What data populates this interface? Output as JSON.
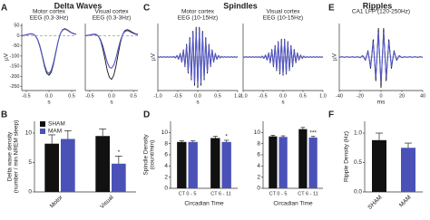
{
  "figure": {
    "panels": [
      {
        "label": "A",
        "title": "Delta Waves"
      },
      {
        "label": "B"
      },
      {
        "label": "C",
        "title": "Spindles"
      },
      {
        "label": "D"
      },
      {
        "label": "E",
        "title": "Ripples"
      },
      {
        "label": "F"
      }
    ]
  },
  "chart_data": [
    {
      "type": "line",
      "subtitle": [
        "Motor cortex",
        "EEG (0.3-3Hz)"
      ],
      "ylabel": "µV",
      "xlabel": "s",
      "x": [
        -0.6,
        -0.55,
        -0.5,
        -0.45,
        -0.4,
        -0.35,
        -0.3,
        -0.25,
        -0.2,
        -0.15,
        -0.1,
        -0.05,
        0,
        0.05,
        0.1,
        0.15,
        0.2,
        0.25,
        0.3,
        0.35,
        0.4,
        0.45,
        0.5,
        0.55,
        0.6
      ],
      "series": [
        {
          "color": "#111111",
          "values": [
            0,
            2,
            5,
            8,
            10,
            8,
            0,
            -20,
            -55,
            -100,
            -150,
            -185,
            -195,
            -180,
            -140,
            -85,
            -30,
            10,
            30,
            35,
            30,
            22,
            15,
            10,
            8
          ]
        },
        {
          "color": "#5558c8",
          "values": [
            0,
            2,
            4,
            7,
            9,
            7,
            0,
            -18,
            -50,
            -95,
            -142,
            -176,
            -186,
            -170,
            -132,
            -80,
            -28,
            10,
            28,
            32,
            28,
            20,
            14,
            9,
            7
          ]
        }
      ],
      "xlim": [
        -0.6,
        0.6
      ],
      "xticks": [
        -0.5,
        {
          "value": 0,
          "label": "0.0"
        },
        0.5
      ],
      "ylim": [
        -270,
        60
      ],
      "yticks": [
        50,
        0,
        -50,
        -100,
        -150,
        -200,
        -250
      ],
      "zero_line": "dashed"
    },
    {
      "type": "line",
      "subtitle": [
        "Visual cortex",
        "EEG (0.3-3Hz)"
      ],
      "xlabel": "s",
      "x": [
        -0.6,
        -0.55,
        -0.5,
        -0.45,
        -0.4,
        -0.35,
        -0.3,
        -0.25,
        -0.2,
        -0.15,
        -0.1,
        -0.05,
        0,
        0.05,
        0.1,
        0.15,
        0.2,
        0.25,
        0.3,
        0.35,
        0.4,
        0.45,
        0.5,
        0.55,
        0.6
      ],
      "series": [
        {
          "color": "#111111",
          "values": [
            0,
            2,
            4,
            6,
            8,
            6,
            -2,
            -25,
            -65,
            -115,
            -170,
            -205,
            -215,
            -195,
            -150,
            -90,
            -35,
            5,
            25,
            30,
            27,
            20,
            14,
            9,
            7
          ]
        },
        {
          "color": "#5558c8",
          "values": [
            0,
            1,
            3,
            5,
            6,
            4,
            -2,
            -20,
            -50,
            -90,
            -130,
            -155,
            -160,
            -145,
            -110,
            -65,
            -25,
            5,
            20,
            25,
            22,
            16,
            11,
            7,
            5
          ]
        }
      ],
      "xlim": [
        -0.6,
        0.6
      ],
      "xticks": [
        -0.5,
        {
          "value": 0,
          "label": "0.0"
        },
        0.5
      ],
      "ylim": [
        -270,
        60
      ],
      "zero_line": "dashed"
    },
    {
      "type": "line",
      "subtitle": [
        "Motor cortex",
        "EEG (10-15Hz)"
      ],
      "ylabel": "µV",
      "xlabel": "s",
      "x": [
        -1,
        -0.96,
        -0.92,
        -0.88,
        -0.84,
        -0.8,
        -0.76,
        -0.72,
        -0.68,
        -0.64,
        -0.6,
        -0.56,
        -0.52,
        -0.48,
        -0.44,
        -0.4,
        -0.36,
        -0.32,
        -0.28,
        -0.24,
        -0.2,
        -0.16,
        -0.12,
        -0.08,
        -0.04,
        0,
        0.04,
        0.08,
        0.12,
        0.16,
        0.2,
        0.24,
        0.28,
        0.32,
        0.36,
        0.4,
        0.44,
        0.48,
        0.52,
        0.56,
        0.6,
        0.64,
        0.68,
        0.72,
        0.76,
        0.8,
        0.84,
        0.88,
        0.92,
        0.96,
        1
      ],
      "series": [
        {
          "color": "#111111",
          "values": [
            1,
            -1,
            1,
            -1,
            1,
            -1,
            1,
            -1,
            1,
            -1,
            2,
            -3,
            5,
            -8,
            12,
            -17,
            24,
            -32,
            42,
            -53,
            64,
            -75,
            85,
            -93,
            98,
            -100,
            98,
            -93,
            85,
            -75,
            64,
            -53,
            42,
            -32,
            24,
            -17,
            12,
            -8,
            5,
            -3,
            2,
            -1,
            1,
            -1,
            1,
            -1,
            1,
            -1,
            1,
            -1,
            1
          ]
        },
        {
          "color": "#5558c8",
          "values": [
            1,
            -1,
            1,
            -1,
            1,
            -1,
            1,
            -1,
            1,
            -1,
            2,
            -3,
            5,
            -7,
            11,
            -15,
            22,
            -29,
            38,
            -48,
            58,
            -68,
            77,
            -84,
            88,
            -90,
            88,
            -84,
            77,
            -68,
            58,
            -48,
            38,
            -29,
            22,
            -15,
            11,
            -7,
            5,
            -3,
            2,
            -1,
            1,
            -1,
            1,
            -1,
            1,
            -1,
            1,
            -1,
            1
          ]
        }
      ],
      "xlim": [
        -1,
        1
      ],
      "xticks": [
        {
          "value": -1,
          "label": "-1.0"
        },
        -0.5,
        {
          "value": 0,
          "label": "0.0"
        },
        0.5,
        {
          "value": 1,
          "label": "1.0"
        }
      ],
      "ylim": [
        -110,
        110
      ],
      "zero_line": "solid"
    },
    {
      "type": "line",
      "subtitle": [
        "Visual cortex",
        "EEG (10-15Hz)"
      ],
      "xlabel": "s",
      "x": [
        -1,
        -0.96,
        -0.92,
        -0.88,
        -0.84,
        -0.8,
        -0.76,
        -0.72,
        -0.68,
        -0.64,
        -0.6,
        -0.56,
        -0.52,
        -0.48,
        -0.44,
        -0.4,
        -0.36,
        -0.32,
        -0.28,
        -0.24,
        -0.2,
        -0.16,
        -0.12,
        -0.08,
        -0.04,
        0,
        0.04,
        0.08,
        0.12,
        0.16,
        0.2,
        0.24,
        0.28,
        0.32,
        0.36,
        0.4,
        0.44,
        0.48,
        0.52,
        0.56,
        0.6,
        0.64,
        0.68,
        0.72,
        0.76,
        0.8,
        0.84,
        0.88,
        0.92,
        0.96,
        1
      ],
      "series": [
        {
          "color": "#111111",
          "values": [
            1,
            -1,
            1,
            -1,
            1,
            -1,
            1,
            -1,
            1,
            -1,
            1,
            -2,
            3,
            -5,
            7,
            -10,
            14,
            -19,
            25,
            -32,
            38,
            -45,
            51,
            -56,
            59,
            -60,
            59,
            -56,
            51,
            -45,
            38,
            -32,
            25,
            -19,
            14,
            -10,
            7,
            -5,
            3,
            -2,
            1,
            -1,
            1,
            -1,
            1,
            -1,
            1,
            -1,
            1,
            -1,
            1
          ]
        },
        {
          "color": "#5558c8",
          "values": [
            1,
            -1,
            1,
            -1,
            1,
            -1,
            1,
            -1,
            1,
            -1,
            1,
            -2,
            3,
            -4,
            6,
            -9,
            13,
            -17,
            23,
            -29,
            35,
            -41,
            47,
            -51,
            54,
            -55,
            54,
            -51,
            47,
            -41,
            35,
            -29,
            23,
            -17,
            13,
            -9,
            6,
            -4,
            3,
            -2,
            1,
            -1,
            1,
            -1,
            1,
            -1,
            1,
            -1,
            1,
            -1,
            1
          ]
        }
      ],
      "xlim": [
        -1,
        1
      ],
      "xticks": [
        {
          "value": -1,
          "label": "-1.0"
        },
        -0.5,
        {
          "value": 0,
          "label": "0.0"
        },
        0.5,
        {
          "value": 1,
          "label": "1.0"
        }
      ],
      "ylim": [
        -110,
        110
      ],
      "zero_line": "solid"
    },
    {
      "type": "line",
      "subtitle": [
        "CA1 LFP (120-250Hz)"
      ],
      "ylabel": "µV",
      "xlabel": "ms",
      "x": [
        -40,
        -37.5,
        -35,
        -32.5,
        -30,
        -27.5,
        -25,
        -22.5,
        -20,
        -17.5,
        -15,
        -12.5,
        -10,
        -7.5,
        -5,
        -2.5,
        0,
        2.5,
        5,
        7.5,
        10,
        12.5,
        15,
        17.5,
        20,
        22.5,
        25,
        27.5,
        30,
        32.5,
        35,
        37.5,
        40
      ],
      "series": [
        {
          "color": "#111111",
          "values": [
            -1,
            1,
            -1,
            1,
            -1,
            1,
            -1,
            1,
            -2,
            5,
            -11,
            21,
            -37,
            57,
            -78,
            94,
            -100,
            94,
            -78,
            57,
            -37,
            21,
            -11,
            5,
            -2,
            1,
            -1,
            1,
            -1,
            1,
            -1,
            1,
            -1
          ]
        },
        {
          "color": "#5558c8",
          "values": [
            -1,
            1,
            -1,
            1,
            -1,
            1,
            -1,
            1,
            -2,
            4,
            -9,
            18,
            -31,
            48,
            -66,
            80,
            -85,
            80,
            -66,
            48,
            -31,
            18,
            -9,
            4,
            -2,
            1,
            -1,
            1,
            -1,
            1,
            -1,
            1,
            -1
          ]
        }
      ],
      "xlim": [
        -40,
        40
      ],
      "xticks": [
        -40,
        -20,
        0,
        20,
        40
      ],
      "ylim": [
        -110,
        110
      ],
      "zero_line": "solid"
    },
    {
      "type": "bar",
      "ylabel": [
        "Delta wave density",
        "(number / min NREM sleep)"
      ],
      "categories": [
        "Motor",
        "Visual"
      ],
      "series": [
        {
          "name": "SHAM",
          "color": "#111111",
          "values": [
            8.2,
            9.5
          ],
          "errors": [
            1.5,
            1.2
          ]
        },
        {
          "name": "MAM",
          "color": "#4a52b8",
          "values": [
            9.0,
            4.8
          ],
          "errors": [
            1.4,
            1.3
          ]
        }
      ],
      "ylim": [
        0,
        12
      ],
      "yticks": [
        0,
        5,
        10
      ],
      "legend": "upper left",
      "annotations": [
        {
          "text": "*",
          "category": "Visual"
        }
      ]
    },
    {
      "type": "bar",
      "ylabel": [
        "Spindle Density",
        "(count/min)"
      ],
      "xlabel": "Circadian Time",
      "categories": [
        "CT 0 - 5",
        "CT 6 - 11"
      ],
      "series": [
        {
          "color": "#111111",
          "values": [
            8.3,
            9.0
          ],
          "errors": [
            0.2,
            0.3
          ]
        },
        {
          "color": "#4a52b8",
          "values": [
            8.3,
            8.3
          ],
          "errors": [
            0.2,
            0.3
          ]
        }
      ],
      "ylim": [
        0,
        12
      ],
      "yticks": [
        0,
        2,
        4,
        6,
        8,
        10
      ],
      "annotations": [
        {
          "text": "*",
          "category": "CT 6 - 11"
        }
      ]
    },
    {
      "type": "bar",
      "xlabel": "Circadian Time",
      "categories": [
        "CT 0 - 5",
        "CT 6 - 11"
      ],
      "series": [
        {
          "color": "#111111",
          "values": [
            9.3,
            10.6
          ],
          "errors": [
            0.2,
            0.3
          ]
        },
        {
          "color": "#4a52b8",
          "values": [
            9.2,
            9.1
          ],
          "errors": [
            0.2,
            0.2
          ]
        }
      ],
      "ylim": [
        0,
        12
      ],
      "yticks": [
        0,
        2,
        4,
        6,
        8,
        10
      ],
      "annotations": [
        {
          "text": "***",
          "category": "CT 6 - 11"
        }
      ]
    },
    {
      "type": "bar",
      "ylabel": [
        "Ripple Density (Hz)"
      ],
      "categories": [
        "SHAM",
        "MAM"
      ],
      "values": [
        0.88,
        0.75
      ],
      "colors": [
        "#111111",
        "#4a52b8"
      ],
      "errors": [
        0.12,
        0.08
      ],
      "ylim": [
        0,
        1.2
      ],
      "yticks": [
        {
          "value": 0,
          "label": "0.0"
        },
        0.5,
        {
          "value": 1,
          "label": "1.0"
        }
      ]
    }
  ]
}
